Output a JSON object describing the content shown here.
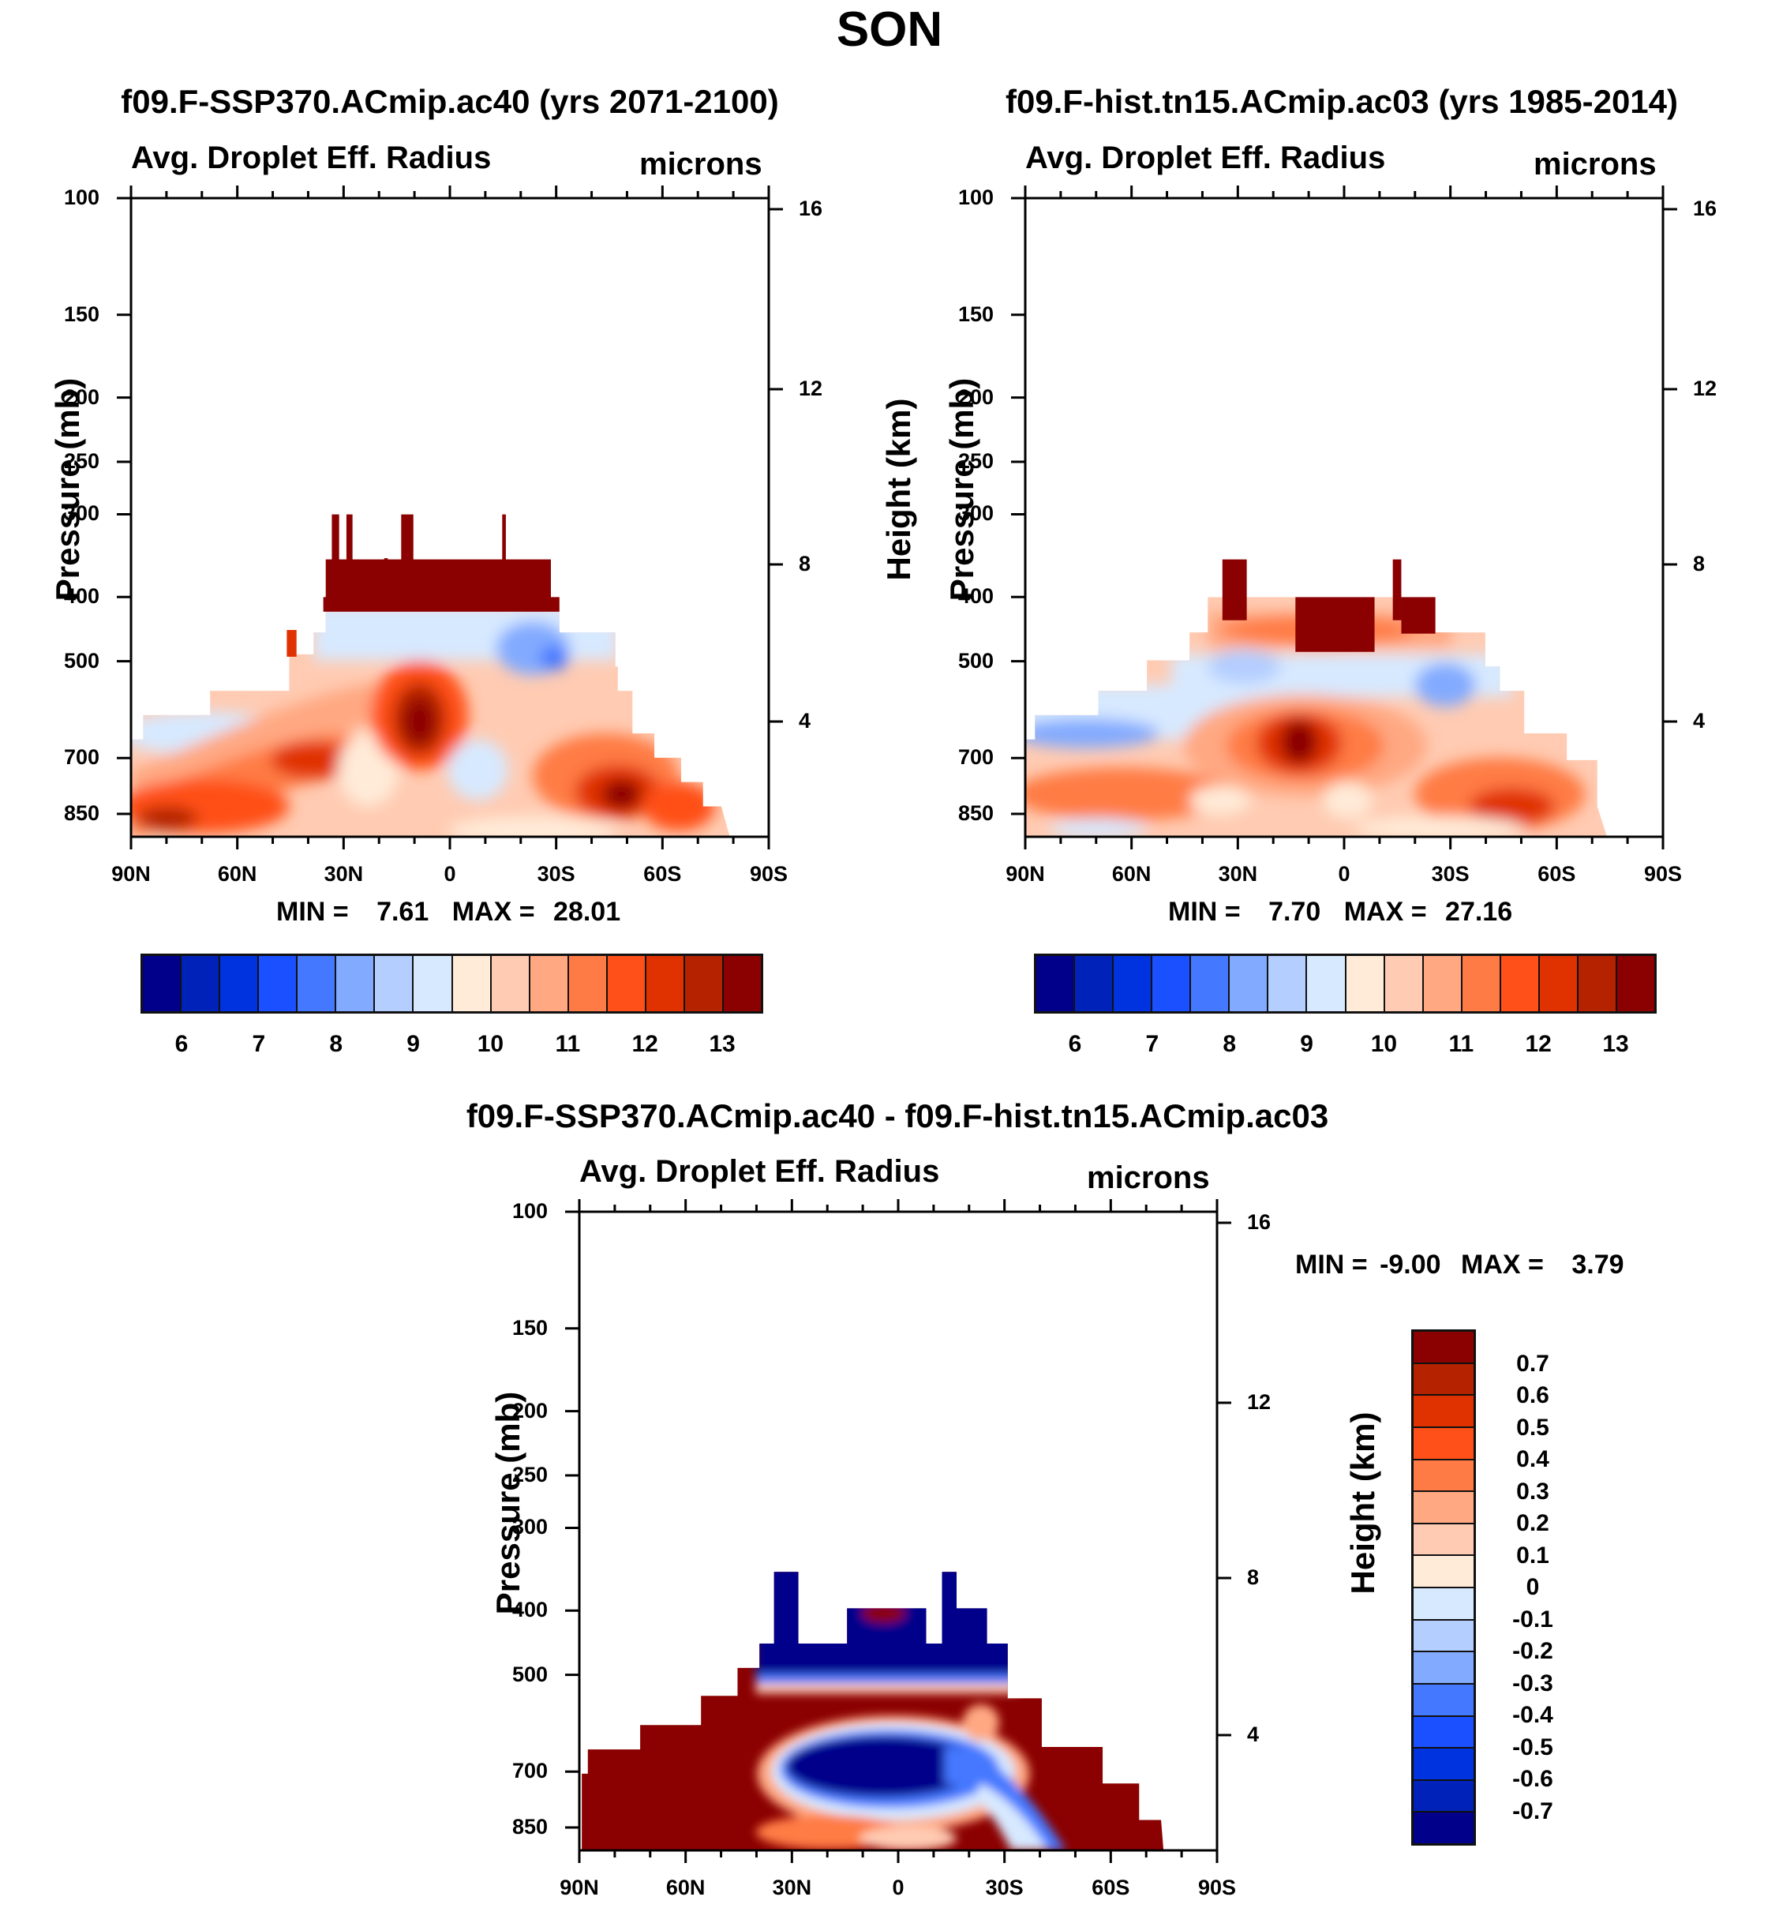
{
  "title": "SON",
  "panels": [
    {
      "title": "f09.F-SSP370.ACmip.ac40 (yrs 2071-2100)",
      "subtitle": "Avg. Droplet Eff. Radius",
      "units": "microns",
      "ylabel": "Pressure (mb)",
      "y2label": "Height (km)",
      "min_label": "MIN =",
      "min_value": "7.61",
      "max_label": "MAX =",
      "max_value": "28.01"
    },
    {
      "title": "f09.F-hist.tn15.ACmip.ac03 (yrs 1985-2014)",
      "subtitle": "Avg. Droplet Eff. Radius",
      "units": "microns",
      "ylabel": "Pressure (mb)",
      "y2label": "Height (km)",
      "min_label": "MIN =",
      "min_value": "7.70",
      "max_label": "MAX =",
      "max_value": "27.16"
    },
    {
      "title": "f09.F-SSP370.ACmip.ac40 - f09.F-hist.tn15.ACmip.ac03",
      "subtitle": "Avg. Droplet Eff. Radius",
      "units": "microns",
      "ylabel": "Pressure (mb)",
      "y2label": "Height (km)",
      "min_label": "MIN =",
      "min_value": "-9.00",
      "max_label": "MAX =",
      "max_value": "3.79"
    }
  ],
  "chart_data": [
    {
      "type": "heatmap",
      "title": "f09.F-SSP370.ACmip.ac40 (yrs 2071-2100)",
      "subtitle": "Avg. Droplet Eff. Radius",
      "xlabel": "",
      "ylabel": "Pressure (mb)",
      "y2label": "Height (km)",
      "x_ticks": [
        "90N",
        "60N",
        "30N",
        "0",
        "30S",
        "60S",
        "90S"
      ],
      "y_ticks": [
        100,
        150,
        200,
        250,
        300,
        400,
        500,
        700,
        850
      ],
      "y2_ticks": [
        16,
        12,
        8,
        4
      ],
      "y_scale": "log",
      "ylim": [
        1000,
        100
      ],
      "min": 7.61,
      "max": 28.01,
      "levels": [
        6,
        6.5,
        7,
        7.5,
        8,
        8.5,
        9,
        9.5,
        10,
        10.5,
        11,
        11.5,
        12,
        12.5,
        13
      ],
      "colorbar_labels": [
        "6",
        "7",
        "8",
        "9",
        "10",
        "11",
        "12",
        "13"
      ],
      "colorbar_placement": "bottom"
    },
    {
      "type": "heatmap",
      "title": "f09.F-hist.tn15.ACmip.ac03 (yrs 1985-2014)",
      "subtitle": "Avg. Droplet Eff. Radius",
      "ylabel": "Pressure (mb)",
      "y2label": "Height (km)",
      "x_ticks": [
        "90N",
        "60N",
        "30N",
        "0",
        "30S",
        "60S",
        "90S"
      ],
      "y_ticks": [
        100,
        150,
        200,
        250,
        300,
        400,
        500,
        700,
        850
      ],
      "y2_ticks": [
        16,
        12,
        8,
        4
      ],
      "y_scale": "log",
      "ylim": [
        1000,
        100
      ],
      "min": 7.7,
      "max": 27.16,
      "levels": [
        6,
        6.5,
        7,
        7.5,
        8,
        8.5,
        9,
        9.5,
        10,
        10.5,
        11,
        11.5,
        12,
        12.5,
        13
      ],
      "colorbar_labels": [
        "6",
        "7",
        "8",
        "9",
        "10",
        "11",
        "12",
        "13"
      ],
      "colorbar_placement": "bottom"
    },
    {
      "type": "heatmap",
      "title": "f09.F-SSP370.ACmip.ac40 - f09.F-hist.tn15.ACmip.ac03",
      "subtitle": "Avg. Droplet Eff. Radius",
      "ylabel": "Pressure (mb)",
      "y2label": "Height (km)",
      "x_ticks": [
        "90N",
        "60N",
        "30N",
        "0",
        "30S",
        "60S",
        "90S"
      ],
      "y_ticks": [
        100,
        150,
        200,
        250,
        300,
        400,
        500,
        700,
        850
      ],
      "y2_ticks": [
        16,
        12,
        8,
        4
      ],
      "y_scale": "log",
      "ylim": [
        1000,
        100
      ],
      "min": -9.0,
      "max": 3.79,
      "levels": [
        -0.7,
        -0.6,
        -0.5,
        -0.4,
        -0.3,
        -0.2,
        -0.1,
        0,
        0.1,
        0.2,
        0.3,
        0.4,
        0.5,
        0.6,
        0.7
      ],
      "colorbar_labels": [
        "0.7",
        "0.6",
        "0.5",
        "0.4",
        "0.3",
        "0.2",
        "0.1",
        "0",
        "-0.1",
        "-0.2",
        "-0.3",
        "-0.4",
        "-0.5",
        "-0.6",
        "-0.7"
      ],
      "colorbar_placement": "right"
    }
  ],
  "colors": [
    "#00008b",
    "#0022b8",
    "#0033e0",
    "#1a50ff",
    "#4478ff",
    "#82aaff",
    "#b4ceff",
    "#d7e9ff",
    "#ffebd8",
    "#ffcbb2",
    "#ffa882",
    "#ff7b45",
    "#ff5019",
    "#e03200",
    "#b42200",
    "#8b0000"
  ]
}
